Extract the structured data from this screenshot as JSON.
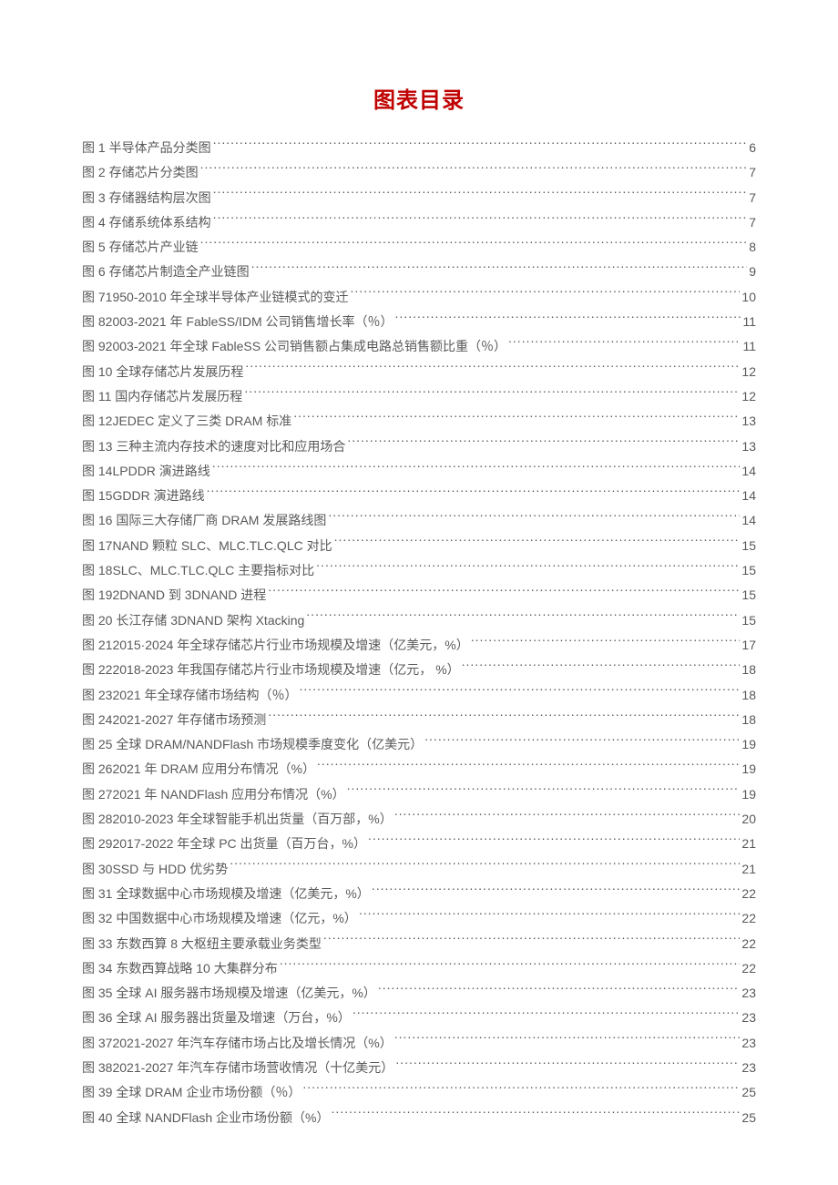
{
  "colors": {
    "title": "#c00000",
    "text": "#595959",
    "background": "#ffffff"
  },
  "typography": {
    "title_fontsize": 24,
    "entry_fontsize": 14,
    "line_height": 1.95,
    "font_family": "Microsoft YaHei"
  },
  "title": "图表目录",
  "entries": [
    {
      "label": "图 1 半导体产品分类图",
      "page": "6"
    },
    {
      "label": "图 2 存储芯片分类图",
      "page": "7"
    },
    {
      "label": "图 3 存储器结构层次图",
      "page": "7"
    },
    {
      "label": "图 4 存储系统体系结构",
      "page": "7"
    },
    {
      "label": "图 5 存储芯片产业链",
      "page": "8"
    },
    {
      "label": "图 6 存储芯片制造全产业链图",
      "page": "9"
    },
    {
      "label": "图 71950-2010 年全球半导体产业链模式的变迁",
      "page": "10"
    },
    {
      "label": "图 82003-2021 年 FableSS/IDM 公司销售增长率（％）",
      "page": "11"
    },
    {
      "label": "图 92003-2021 年全球 FableSS 公司销售额占集成电路总销售额比重（％）",
      "page": "11"
    },
    {
      "label": "图 10 全球存储芯片发展历程",
      "page": "12"
    },
    {
      "label": "图 11 国内存储芯片发展历程",
      "page": "12"
    },
    {
      "label": "图 12JEDEC 定义了三类 DRAM 标准",
      "page": "13"
    },
    {
      "label": "图 13 三种主流内存技术的速度对比和应用场合",
      "page": "13"
    },
    {
      "label": "图 14LPDDR 演进路线",
      "page": "14"
    },
    {
      "label": "图 15GDDR 演进路线",
      "page": "14"
    },
    {
      "label": "图 16 国际三大存储厂商 DRAM 发展路线图",
      "page": "14"
    },
    {
      "label": "图 17NAND 颗粒 SLC、MLC.TLC.QLC 对比",
      "page": "15"
    },
    {
      "label": "图 18SLC、MLC.TLC.QLC 主要指标对比",
      "page": "15"
    },
    {
      "label": "图 192DNAND 到 3DNAND 进程",
      "page": "15"
    },
    {
      "label": "图 20 长江存储 3DNAND 架构 Xtacking",
      "page": "15"
    },
    {
      "label": "图 212015·2024 年全球存储芯片行业市场规模及增速（亿美元，%）",
      "page": "17"
    },
    {
      "label": "图 222018-2023 年我国存储芯片行业市场规模及增速（亿元， %）",
      "page": "18"
    },
    {
      "label": "图 232021 年全球存储市场结构（％）",
      "page": "18"
    },
    {
      "label": "图 242021-2027 年存储市场预测",
      "page": "18"
    },
    {
      "label": "图 25 全球 DRAM/NANDFlash 市场规模季度变化（亿美元）",
      "page": "19"
    },
    {
      "label": "图 262021 年 DRAM 应用分布情况（%）",
      "page": "19"
    },
    {
      "label": "图 272021 年 NANDFlash 应用分布情况（%）",
      "page": "19"
    },
    {
      "label": "图 282010-2023 年全球智能手机出货量（百万部，%）",
      "page": "20"
    },
    {
      "label": "图 292017-2022 年全球 PC 出货量（百万台，%）",
      "page": "21"
    },
    {
      "label": "图 30SSD 与 HDD 优劣势",
      "page": "21"
    },
    {
      "label": "图 31 全球数据中心市场规模及增速（亿美元，%）",
      "page": "22"
    },
    {
      "label": "图 32 中国数据中心市场规模及增速（亿元，%）",
      "page": "22"
    },
    {
      "label": "图 33 东数西算 8 大枢纽主要承载业务类型",
      "page": "22"
    },
    {
      "label": "图 34 东数西算战略 10 大集群分布",
      "page": "22"
    },
    {
      "label": "图 35 全球 AI 服务器市场规模及增速（亿美元，%）",
      "page": "23"
    },
    {
      "label": "图 36 全球 AI 服务器出货量及增速（万台，%）",
      "page": "23"
    },
    {
      "label": "图 372021-2027 年汽车存储市场占比及增长情况（%）",
      "page": "23"
    },
    {
      "label": "图 382021-2027 年汽车存储市场营收情况（十亿美元）",
      "page": "23"
    },
    {
      "label": "图 39 全球 DRAM 企业市场份额（％）",
      "page": "25"
    },
    {
      "label": "图 40 全球 NANDFlash 企业市场份额（%）",
      "page": "25"
    }
  ]
}
